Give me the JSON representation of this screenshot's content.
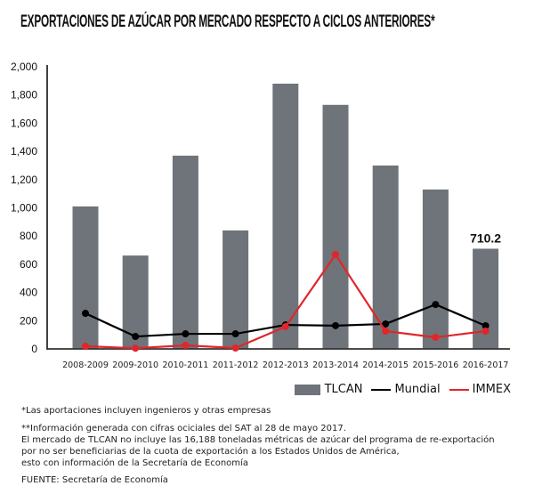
{
  "chart_data": {
    "type": "bar",
    "title": "EXPORTACIONES DE AZÚCAR POR MERCADO RESPECTO A CICLOS ANTERIORES*",
    "categories": [
      "2008-2009",
      "2009-2010",
      "2010-2011",
      "2011-2012",
      "2012-2013",
      "2013-2014",
      "2014-2015",
      "2015-2016",
      "2016-2017"
    ],
    "ylim": [
      0,
      2000
    ],
    "yticks": [
      "0",
      "200",
      "400",
      "600",
      "800",
      "1,000",
      "1,200",
      "1,400",
      "1,600",
      "1,800",
      "2,000"
    ],
    "grid": false,
    "legend_position": "bottom-right",
    "series": [
      {
        "name": "TLCAN",
        "type": "bar",
        "color": "#6e7479",
        "values": [
          1010,
          662,
          1370,
          840,
          1880,
          1730,
          1300,
          1130,
          710.2
        ]
      },
      {
        "name": "Mundial",
        "type": "line",
        "color": "#000000",
        "values": [
          252,
          88,
          107,
          107,
          170,
          165,
          177,
          315,
          164
        ]
      },
      {
        "name": "IMMEX",
        "type": "line",
        "color": "#e0262b",
        "values": [
          19,
          5,
          25,
          6,
          158,
          669,
          126,
          82,
          126
        ]
      }
    ],
    "annotations": [
      {
        "category": "2016-2017",
        "text": "710.2"
      }
    ]
  },
  "notes": {
    "note1": "*Las aportaciones incluyen ingenieros y otras empresas",
    "note2_lines": [
      "**Información generada con cifras ociciales del SAT al 28 de mayo 2017.",
      "El mercado de TLCAN no incluye las 16,188 toneladas métricas de azúcar del programa de re-exportación",
      "por no ser beneficiarias de la cuota de exportación a los Estados Unidos de América,",
      "esto con información de la Secretaría de Economía"
    ],
    "source": "FUENTE: Secretaría de Economía"
  }
}
